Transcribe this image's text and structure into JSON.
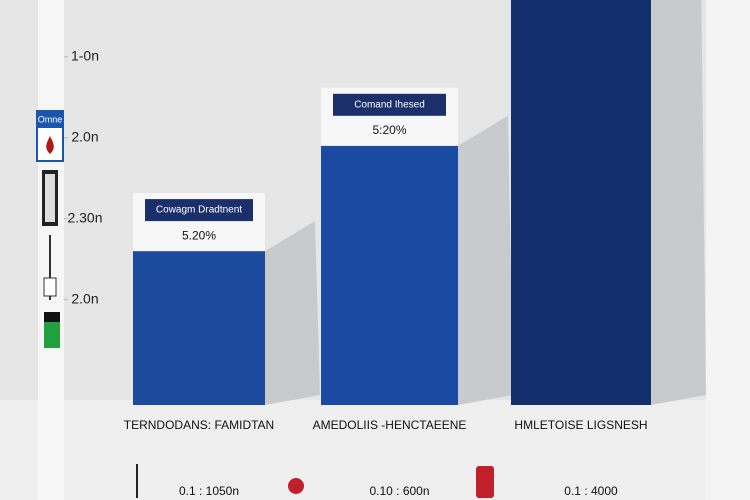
{
  "chart_data": {
    "type": "bar",
    "categories": [
      "TERNDODANS: FAMIDTAN",
      "AMEDOLIIS -HENCTAEENE",
      "HMLETOISE LIGSNESH"
    ],
    "values": [
      1.9,
      3.2,
      5.0
    ],
    "colors": [
      "#1c4a9c",
      "#1a4aa2",
      "#142f6e"
    ],
    "ylim": [
      0,
      5
    ],
    "yticks": [
      {
        "value": 1.3,
        "label": "2.0n"
      },
      {
        "value": 2.3,
        "label": "2.30n"
      },
      {
        "value": 3.3,
        "label": "2.0n"
      },
      {
        "value": 4.3,
        "label": "1-0n"
      }
    ],
    "annotations": [
      {
        "title": "Cowagm Dradtnent",
        "label": "5.20%"
      },
      {
        "title": "Comand Ihesed",
        "label": "5:20%"
      }
    ],
    "footer_items": [
      "0.1 : 1050n",
      "0.10 : 600n",
      "0.1 : 4000"
    ],
    "sidebar_label": "Omne"
  }
}
